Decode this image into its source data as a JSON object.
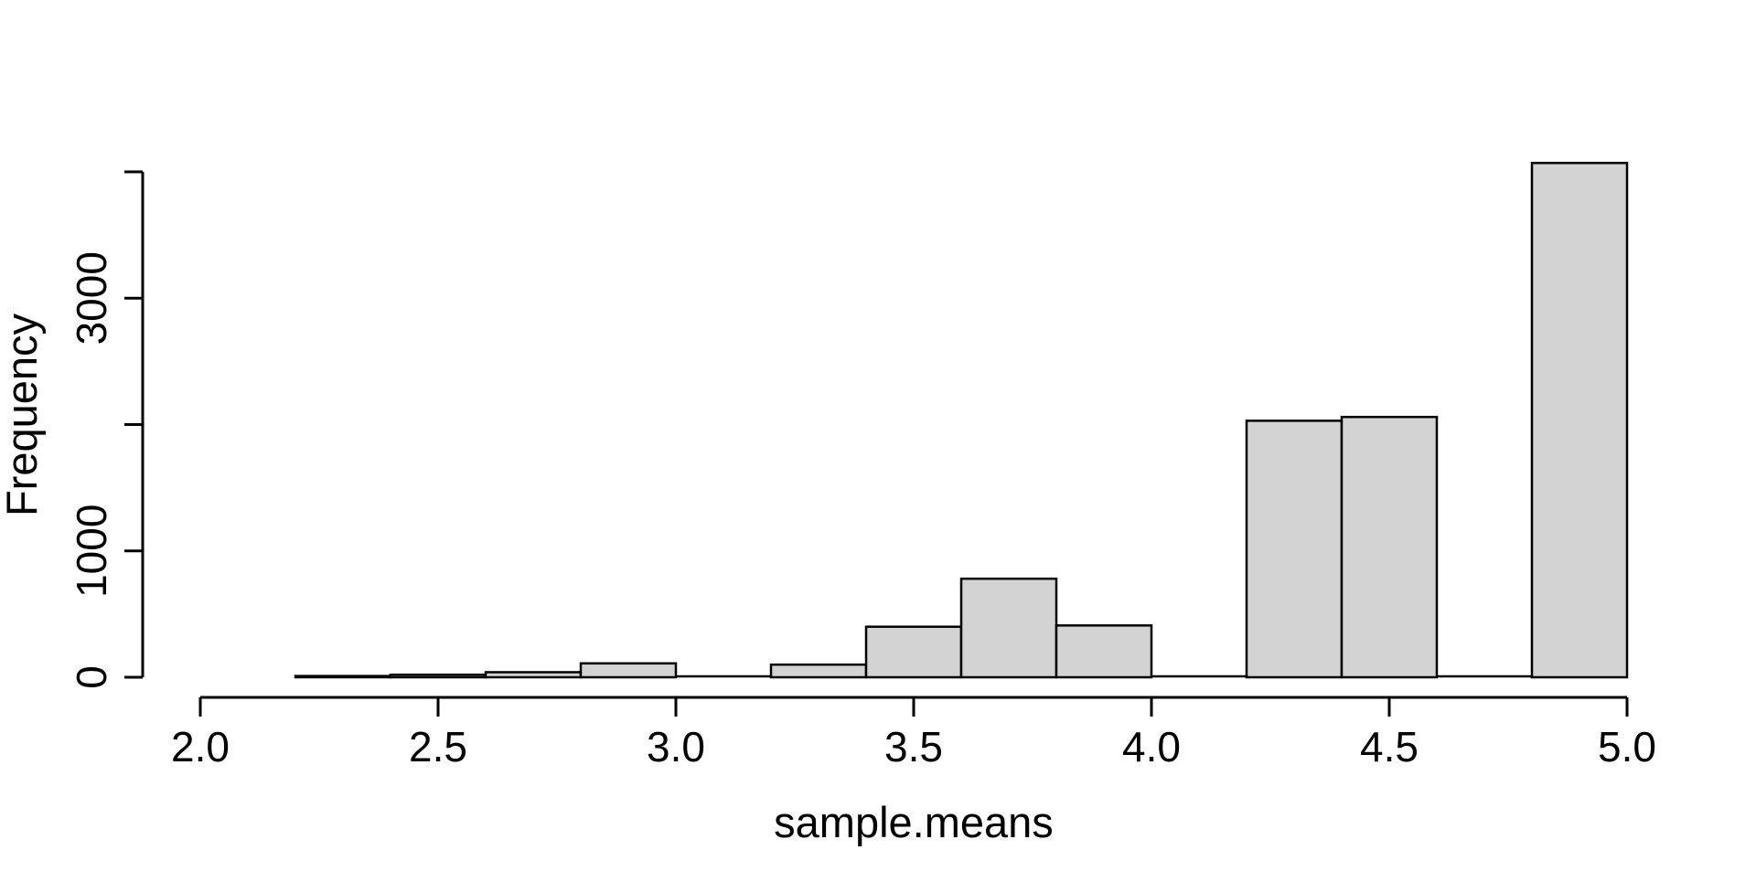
{
  "figure": {
    "background": "#ffffff"
  },
  "chart_data": {
    "type": "bar",
    "subtype": "histogram",
    "title": "",
    "xlabel": "sample.means",
    "ylabel": "Frequency",
    "bar_fill": "#d3d3d3",
    "bar_border": "#000000",
    "axis_color": "#000000",
    "grid": "off",
    "legend": "none",
    "xlim": [
      2.0,
      5.0
    ],
    "ylim": [
      0,
      4100
    ],
    "x_ticks": [
      {
        "value": 2.0,
        "label": "2.0"
      },
      {
        "value": 2.5,
        "label": "2.5"
      },
      {
        "value": 3.0,
        "label": "3.0"
      },
      {
        "value": 3.5,
        "label": "3.5"
      },
      {
        "value": 4.0,
        "label": "4.0"
      },
      {
        "value": 4.5,
        "label": "4.5"
      },
      {
        "value": 5.0,
        "label": "5.0"
      }
    ],
    "y_ticks": [
      {
        "value": 0,
        "label": "0"
      },
      {
        "value": 1000,
        "label": "1000"
      },
      {
        "value": 2000,
        "label": ""
      },
      {
        "value": 3000,
        "label": "3000"
      },
      {
        "value": 4000,
        "label": ""
      }
    ],
    "bin_width": 0.2,
    "bins": [
      {
        "from": 2.2,
        "to": 2.4,
        "count": 10
      },
      {
        "from": 2.4,
        "to": 2.6,
        "count": 20
      },
      {
        "from": 2.6,
        "to": 2.8,
        "count": 40
      },
      {
        "from": 2.8,
        "to": 3.0,
        "count": 110
      },
      {
        "from": 3.0,
        "to": 3.2,
        "count": 0
      },
      {
        "from": 3.2,
        "to": 3.4,
        "count": 100
      },
      {
        "from": 3.4,
        "to": 3.6,
        "count": 400
      },
      {
        "from": 3.6,
        "to": 3.8,
        "count": 780
      },
      {
        "from": 3.8,
        "to": 4.0,
        "count": 410
      },
      {
        "from": 4.0,
        "to": 4.2,
        "count": 0
      },
      {
        "from": 4.2,
        "to": 4.4,
        "count": 2030
      },
      {
        "from": 4.4,
        "to": 4.6,
        "count": 2060
      },
      {
        "from": 4.6,
        "to": 4.8,
        "count": 0
      },
      {
        "from": 4.8,
        "to": 5.0,
        "count": 4070
      }
    ]
  }
}
